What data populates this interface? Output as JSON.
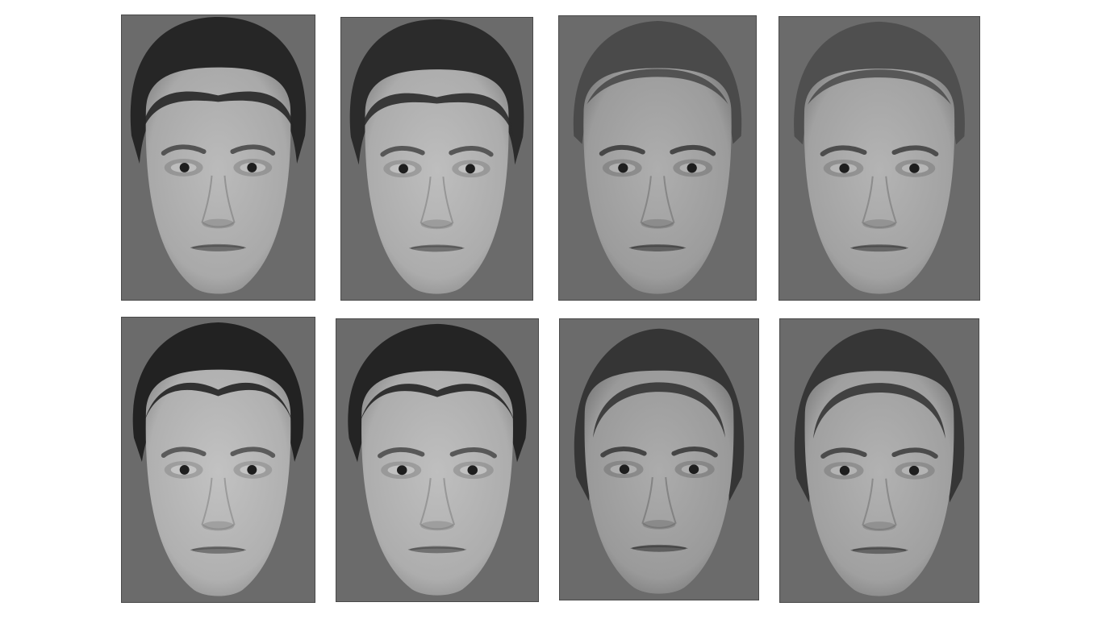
{
  "figure": {
    "background_color": "#ffffff",
    "panel_background_color": "#6b6b6b",
    "grid": {
      "rows": 2,
      "columns": 4
    },
    "panels": [
      {
        "row": 1,
        "col": 1,
        "hair_style": "short",
        "hair_tone": "#262626",
        "skin_tone": "#a9a9a9"
      },
      {
        "row": 1,
        "col": 2,
        "hair_style": "short",
        "hair_tone": "#2b2b2b",
        "skin_tone": "#acacac"
      },
      {
        "row": 1,
        "col": 3,
        "hair_style": "cropped",
        "hair_tone": "#4a4a4a",
        "skin_tone": "#9c9c9c"
      },
      {
        "row": 1,
        "col": 4,
        "hair_style": "cropped",
        "hair_tone": "#4f4f4f",
        "skin_tone": "#a2a2a2"
      },
      {
        "row": 2,
        "col": 1,
        "hair_style": "bob",
        "hair_tone": "#222222",
        "skin_tone": "#b0b0b0"
      },
      {
        "row": 2,
        "col": 2,
        "hair_style": "bob",
        "hair_tone": "#242424",
        "skin_tone": "#adadad"
      },
      {
        "row": 2,
        "col": 3,
        "hair_style": "long",
        "hair_tone": "#353535",
        "skin_tone": "#9a9a9a"
      },
      {
        "row": 2,
        "col": 4,
        "hair_style": "long",
        "hair_tone": "#363636",
        "skin_tone": "#a0a0a0"
      }
    ]
  }
}
